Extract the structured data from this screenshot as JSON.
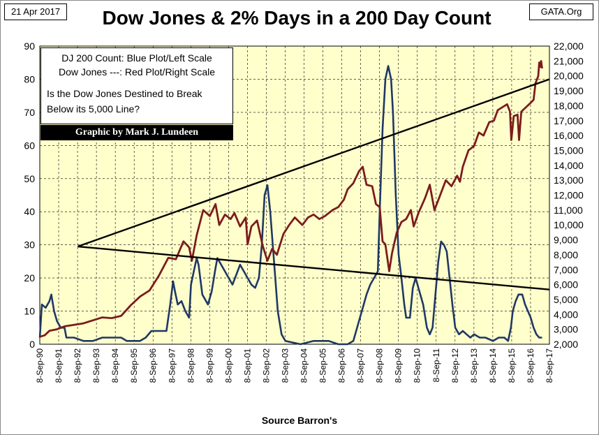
{
  "header": {
    "date": "21 Apr 2017",
    "source": "GATA.Org"
  },
  "chart_data": {
    "type": "line",
    "title": "Dow Jones & 2% Days in a 200 Day Count",
    "xlabel": "Source Barron's",
    "x_ticks": [
      "8-Sep-90",
      "8-Sep-91",
      "8-Sep-92",
      "8-Sep-93",
      "8-Sep-94",
      "8-Sep-95",
      "8-Sep-96",
      "8-Sep-97",
      "8-Sep-98",
      "8-Sep-99",
      "8-Sep-00",
      "8-Sep-01",
      "8-Sep-02",
      "8-Sep-03",
      "8-Sep-04",
      "8-Sep-05",
      "8-Sep-06",
      "8-Sep-07",
      "8-Sep-08",
      "8-Sep-09",
      "8-Sep-10",
      "8-Sep-11",
      "8-Sep-12",
      "8-Sep-13",
      "8-Sep-14",
      "8-Sep-15",
      "8-Sep-16",
      "8-Sep-17"
    ],
    "x_range": [
      1990.69,
      2017.69
    ],
    "left_axis": {
      "label": "DJ 200 Count",
      "range": [
        0,
        90
      ],
      "ticks": [
        "0",
        "10",
        "20",
        "30",
        "40",
        "50",
        "60",
        "70",
        "80",
        "90"
      ]
    },
    "right_axis": {
      "label": "Dow Jones",
      "range": [
        2000,
        22000
      ],
      "ticks": [
        "2,000",
        "3,000",
        "4,000",
        "5,000",
        "6,000",
        "7,000",
        "8,000",
        "9,000",
        "10,000",
        "11,000",
        "12,000",
        "13,000",
        "14,000",
        "15,000",
        "16,000",
        "17,000",
        "18,000",
        "19,000",
        "20,000",
        "21,000",
        "22,000"
      ]
    },
    "series": [
      {
        "name": "DJ 200 Count",
        "color": "#1f3864",
        "axis": "left",
        "points": [
          [
            1990.69,
            2
          ],
          [
            1990.8,
            12
          ],
          [
            1991.0,
            11
          ],
          [
            1991.2,
            13
          ],
          [
            1991.3,
            15
          ],
          [
            1991.45,
            10
          ],
          [
            1991.6,
            7
          ],
          [
            1991.8,
            5
          ],
          [
            1992.0,
            5
          ],
          [
            1992.1,
            2
          ],
          [
            1992.5,
            2
          ],
          [
            1993.0,
            1
          ],
          [
            1993.5,
            1
          ],
          [
            1994.0,
            2
          ],
          [
            1994.5,
            2
          ],
          [
            1995.0,
            2
          ],
          [
            1995.3,
            1
          ],
          [
            1996.0,
            1
          ],
          [
            1996.3,
            2
          ],
          [
            1996.6,
            4
          ],
          [
            1997.0,
            4
          ],
          [
            1997.4,
            4
          ],
          [
            1997.6,
            12
          ],
          [
            1997.75,
            19
          ],
          [
            1997.85,
            16
          ],
          [
            1998.0,
            12
          ],
          [
            1998.2,
            13
          ],
          [
            1998.4,
            10
          ],
          [
            1998.6,
            8
          ],
          [
            1998.7,
            18
          ],
          [
            1998.85,
            22
          ],
          [
            1999.0,
            26
          ],
          [
            1999.1,
            24
          ],
          [
            1999.3,
            15
          ],
          [
            1999.5,
            13
          ],
          [
            1999.6,
            12
          ],
          [
            1999.8,
            16
          ],
          [
            2000.0,
            23
          ],
          [
            2000.1,
            26
          ],
          [
            2000.3,
            24
          ],
          [
            2000.5,
            22
          ],
          [
            2000.7,
            20
          ],
          [
            2000.9,
            18
          ],
          [
            2001.1,
            21
          ],
          [
            2001.3,
            24
          ],
          [
            2001.5,
            22
          ],
          [
            2001.7,
            20
          ],
          [
            2001.9,
            18
          ],
          [
            2002.1,
            17
          ],
          [
            2002.3,
            20
          ],
          [
            2002.45,
            30
          ],
          [
            2002.6,
            45
          ],
          [
            2002.75,
            48
          ],
          [
            2002.9,
            40
          ],
          [
            2003.1,
            25
          ],
          [
            2003.3,
            10
          ],
          [
            2003.5,
            3
          ],
          [
            2003.7,
            1
          ],
          [
            2004.5,
            0
          ],
          [
            2005.2,
            1
          ],
          [
            2006.0,
            1
          ],
          [
            2006.5,
            0
          ],
          [
            2007.0,
            0
          ],
          [
            2007.3,
            1
          ],
          [
            2007.5,
            5
          ],
          [
            2007.7,
            9
          ],
          [
            2007.85,
            12
          ],
          [
            2008.0,
            15
          ],
          [
            2008.2,
            18
          ],
          [
            2008.4,
            20
          ],
          [
            2008.6,
            22
          ],
          [
            2008.7,
            40
          ],
          [
            2008.85,
            65
          ],
          [
            2009.0,
            80
          ],
          [
            2009.15,
            84
          ],
          [
            2009.3,
            80
          ],
          [
            2009.4,
            70
          ],
          [
            2009.55,
            45
          ],
          [
            2009.7,
            27
          ],
          [
            2009.85,
            20
          ],
          [
            2010.0,
            12
          ],
          [
            2010.1,
            8
          ],
          [
            2010.3,
            8
          ],
          [
            2010.45,
            17
          ],
          [
            2010.6,
            20
          ],
          [
            2010.8,
            16
          ],
          [
            2011.0,
            12
          ],
          [
            2011.2,
            5
          ],
          [
            2011.35,
            3
          ],
          [
            2011.5,
            5
          ],
          [
            2011.65,
            15
          ],
          [
            2011.8,
            25
          ],
          [
            2011.95,
            31
          ],
          [
            2012.1,
            30
          ],
          [
            2012.25,
            28
          ],
          [
            2012.4,
            20
          ],
          [
            2012.55,
            12
          ],
          [
            2012.7,
            5
          ],
          [
            2012.9,
            3
          ],
          [
            2013.1,
            4
          ],
          [
            2013.3,
            3
          ],
          [
            2013.5,
            2
          ],
          [
            2013.7,
            3
          ],
          [
            2014.0,
            2
          ],
          [
            2014.3,
            2
          ],
          [
            2014.7,
            1
          ],
          [
            2015.0,
            2
          ],
          [
            2015.3,
            2
          ],
          [
            2015.5,
            1
          ],
          [
            2015.65,
            5
          ],
          [
            2015.75,
            10
          ],
          [
            2015.9,
            13
          ],
          [
            2016.05,
            15
          ],
          [
            2016.25,
            15
          ],
          [
            2016.4,
            12
          ],
          [
            2016.55,
            10
          ],
          [
            2016.7,
            8
          ],
          [
            2016.85,
            5
          ],
          [
            2017.0,
            3
          ],
          [
            2017.15,
            2
          ],
          [
            2017.3,
            2
          ]
        ]
      },
      {
        "name": "Dow Jones",
        "color": "#7b1c1c",
        "axis": "right",
        "points": [
          [
            1990.69,
            2500
          ],
          [
            1990.95,
            2600
          ],
          [
            1991.2,
            2900
          ],
          [
            1991.6,
            3000
          ],
          [
            1992.0,
            3200
          ],
          [
            1992.5,
            3300
          ],
          [
            1993.0,
            3400
          ],
          [
            1993.5,
            3600
          ],
          [
            1994.0,
            3800
          ],
          [
            1994.5,
            3750
          ],
          [
            1995.0,
            3900
          ],
          [
            1995.5,
            4600
          ],
          [
            1996.0,
            5200
          ],
          [
            1996.5,
            5600
          ],
          [
            1997.0,
            6600
          ],
          [
            1997.5,
            7800
          ],
          [
            1997.9,
            7700
          ],
          [
            1998.3,
            8900
          ],
          [
            1998.6,
            8500
          ],
          [
            1998.75,
            7600
          ],
          [
            1999.0,
            9300
          ],
          [
            1999.35,
            11000
          ],
          [
            1999.7,
            10600
          ],
          [
            2000.0,
            11400
          ],
          [
            2000.2,
            10000
          ],
          [
            2000.5,
            10700
          ],
          [
            2000.8,
            10400
          ],
          [
            2001.0,
            10800
          ],
          [
            2001.3,
            9900
          ],
          [
            2001.6,
            10500
          ],
          [
            2001.7,
            8700
          ],
          [
            2001.9,
            9900
          ],
          [
            2002.2,
            10300
          ],
          [
            2002.5,
            8600
          ],
          [
            2002.75,
            7600
          ],
          [
            2003.0,
            8400
          ],
          [
            2003.25,
            8000
          ],
          [
            2003.6,
            9400
          ],
          [
            2003.9,
            10000
          ],
          [
            2004.2,
            10500
          ],
          [
            2004.6,
            10000
          ],
          [
            2004.9,
            10500
          ],
          [
            2005.2,
            10700
          ],
          [
            2005.5,
            10400
          ],
          [
            2005.8,
            10600
          ],
          [
            2006.2,
            11000
          ],
          [
            2006.5,
            11200
          ],
          [
            2006.8,
            11700
          ],
          [
            2007.0,
            12400
          ],
          [
            2007.3,
            12800
          ],
          [
            2007.6,
            13600
          ],
          [
            2007.8,
            13900
          ],
          [
            2008.0,
            12700
          ],
          [
            2008.3,
            12600
          ],
          [
            2008.5,
            11400
          ],
          [
            2008.7,
            11200
          ],
          [
            2008.85,
            8900
          ],
          [
            2009.0,
            8700
          ],
          [
            2009.2,
            6900
          ],
          [
            2009.35,
            8100
          ],
          [
            2009.6,
            9500
          ],
          [
            2009.85,
            10200
          ],
          [
            2010.1,
            10400
          ],
          [
            2010.35,
            11000
          ],
          [
            2010.5,
            9900
          ],
          [
            2010.75,
            10800
          ],
          [
            2011.1,
            11800
          ],
          [
            2011.35,
            12700
          ],
          [
            2011.6,
            11000
          ],
          [
            2011.9,
            12000
          ],
          [
            2012.2,
            13000
          ],
          [
            2012.5,
            12600
          ],
          [
            2012.8,
            13300
          ],
          [
            2012.95,
            12900
          ],
          [
            2013.1,
            13900
          ],
          [
            2013.4,
            15000
          ],
          [
            2013.7,
            15300
          ],
          [
            2013.95,
            16200
          ],
          [
            2014.2,
            16000
          ],
          [
            2014.5,
            16900
          ],
          [
            2014.75,
            17000
          ],
          [
            2014.95,
            17700
          ],
          [
            2015.2,
            17900
          ],
          [
            2015.45,
            18100
          ],
          [
            2015.6,
            17600
          ],
          [
            2015.67,
            15700
          ],
          [
            2015.8,
            17300
          ],
          [
            2016.0,
            17400
          ],
          [
            2016.08,
            15700
          ],
          [
            2016.2,
            17600
          ],
          [
            2016.45,
            17900
          ],
          [
            2016.7,
            18200
          ],
          [
            2016.85,
            18400
          ],
          [
            2016.95,
            19500
          ],
          [
            2017.1,
            20000
          ],
          [
            2017.15,
            20900
          ],
          [
            2017.2,
            20600
          ],
          [
            2017.25,
            21000
          ],
          [
            2017.3,
            20500
          ]
        ]
      }
    ],
    "trendlines": [
      {
        "name": "upper-trendline",
        "axis": "left",
        "from": [
          1992.7,
          29.5
        ],
        "to": [
          2017.69,
          80
        ]
      },
      {
        "name": "lower-trendline",
        "axis": "left",
        "from": [
          1992.7,
          29.5
        ],
        "to": [
          2017.69,
          16.5
        ]
      }
    ],
    "legend": {
      "line1": "DJ 200 Count: Blue Plot/Left Scale",
      "line2": "Dow Jones ---: Red Plot/Right Scale",
      "question1": "Is the Dow Jones Destined to Break",
      "question2": "Below its 5,000 Line?",
      "credit": "Graphic by Mark J. Lundeen",
      "placement": "top-left"
    },
    "grid": true
  },
  "colors": {
    "plot_background": "#ffffcc",
    "grid": "#000000"
  }
}
